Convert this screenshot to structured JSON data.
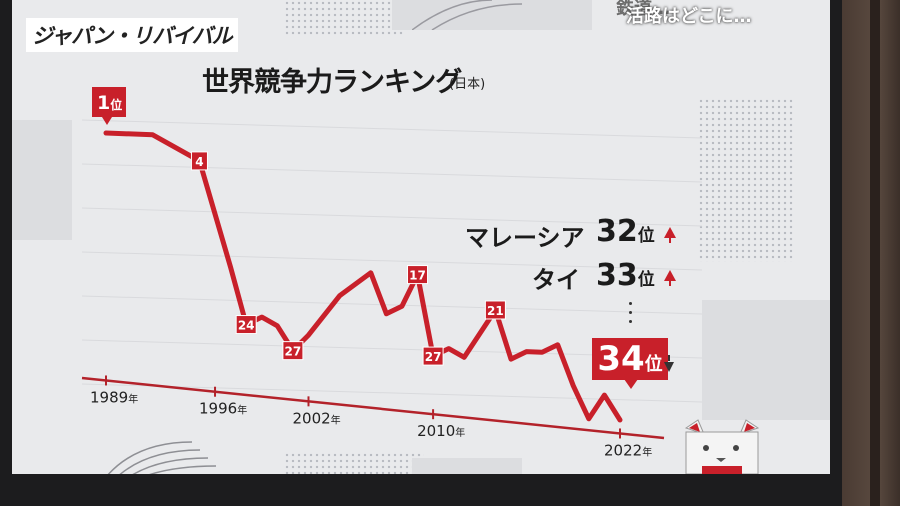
{
  "program_title": "ジャパン・リバイバル",
  "subtitle_partial": "鉄道…",
  "subtitle": "活路はどこに…",
  "chart_title": "世界競争力ランキング",
  "chart_subtitle": "(日本)",
  "comparisons": [
    {
      "country": "マレーシア",
      "rank": "32",
      "unit": "位",
      "trend": "up"
    },
    {
      "country": "タイ",
      "rank": "33",
      "unit": "位",
      "trend": "up"
    }
  ],
  "japan_latest": {
    "rank": "34",
    "unit": "位",
    "trend": "down"
  },
  "chart_data": {
    "type": "line",
    "y_axis": "rank (lower is better, inverted)",
    "x_tick_labels": [
      {
        "year": "1989",
        "unit": "年"
      },
      {
        "year": "1996",
        "unit": "年"
      },
      {
        "year": "2002",
        "unit": "年"
      },
      {
        "year": "2010",
        "unit": "年"
      },
      {
        "year": "2022",
        "unit": "年"
      }
    ],
    "series": [
      {
        "color": "#c8202a",
        "points": [
          {
            "x": 1989,
            "y": 1
          },
          {
            "x": 1992,
            "y": 1
          },
          {
            "x": 1995,
            "y": 4
          },
          {
            "x": 1997,
            "y": 17
          },
          {
            "x": 1998,
            "y": 24
          },
          {
            "x": 1999,
            "y": 23
          },
          {
            "x": 2000,
            "y": 24
          },
          {
            "x": 2001,
            "y": 27
          },
          {
            "x": 2002,
            "y": 25
          },
          {
            "x": 2004,
            "y": 20
          },
          {
            "x": 2006,
            "y": 17
          },
          {
            "x": 2007,
            "y": 22
          },
          {
            "x": 2008,
            "y": 21
          },
          {
            "x": 2009,
            "y": 17
          },
          {
            "x": 2010,
            "y": 27
          },
          {
            "x": 2011,
            "y": 26
          },
          {
            "x": 2012,
            "y": 27
          },
          {
            "x": 2013,
            "y": 24
          },
          {
            "x": 2014,
            "y": 21
          },
          {
            "x": 2015,
            "y": 27
          },
          {
            "x": 2016,
            "y": 26
          },
          {
            "x": 2017,
            "y": 26
          },
          {
            "x": 2018,
            "y": 25
          },
          {
            "x": 2019,
            "y": 30
          },
          {
            "x": 2020,
            "y": 34
          },
          {
            "x": 2021,
            "y": 31
          },
          {
            "x": 2022,
            "y": 34
          }
        ]
      }
    ],
    "point_labels": [
      {
        "x": 1989,
        "text": "1",
        "unit": "位",
        "style": "flag"
      },
      {
        "x": 1995,
        "text": "4"
      },
      {
        "x": 1998,
        "text": "24"
      },
      {
        "x": 2001,
        "text": "27"
      },
      {
        "x": 2009,
        "text": "17"
      },
      {
        "x": 2010,
        "text": "27"
      },
      {
        "x": 2014,
        "text": "21"
      }
    ]
  }
}
